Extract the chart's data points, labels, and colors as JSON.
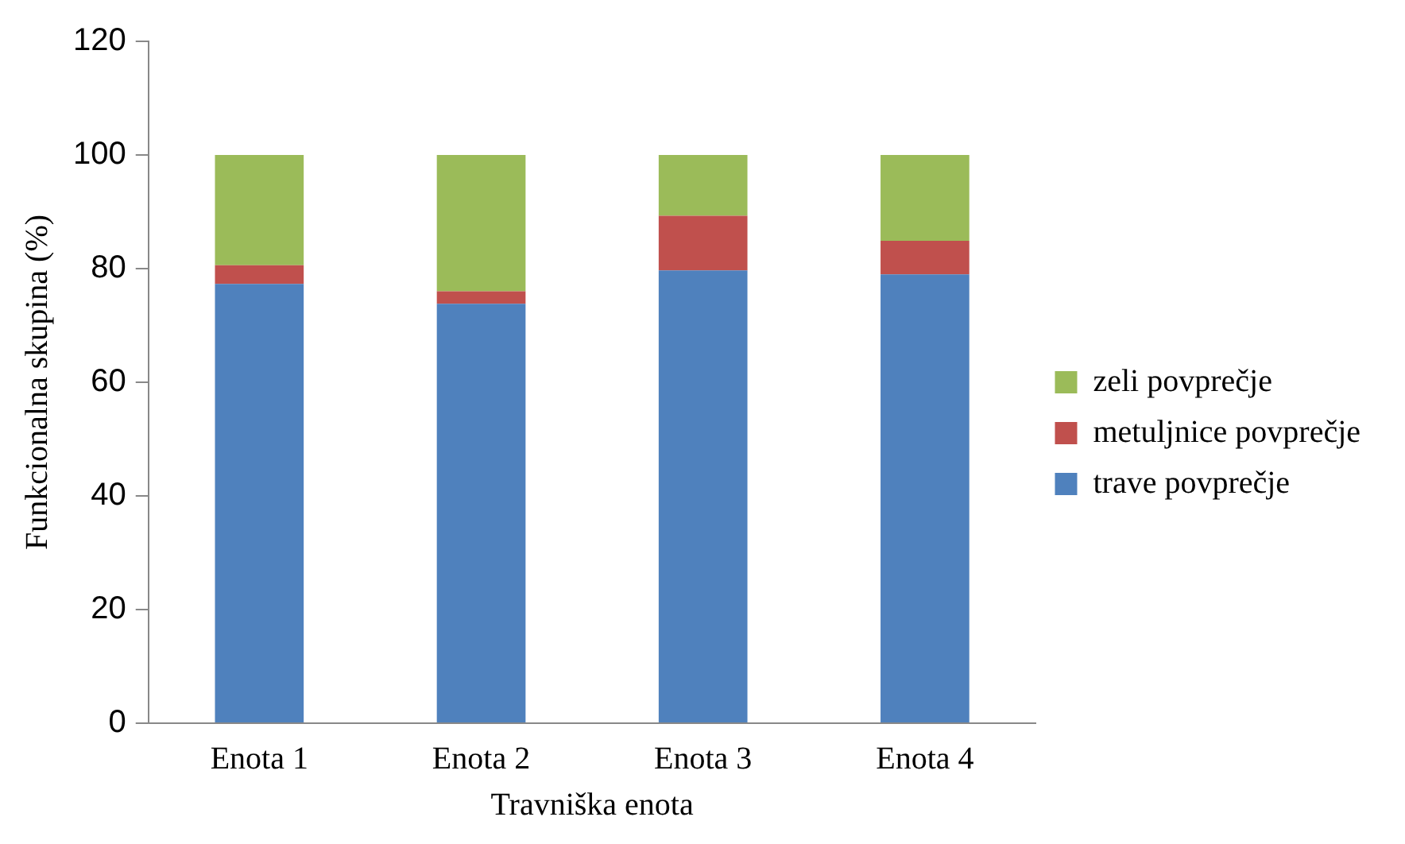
{
  "chart_data": {
    "type": "bar",
    "stacked": true,
    "xlabel": "Travniška enota",
    "ylabel": "Funkcionalna skupina (%)",
    "categories": [
      "Enota 1",
      "Enota 2",
      "Enota 3",
      "Enota 4"
    ],
    "series": [
      {
        "name": "trave povprečje",
        "color": "#4f81bd",
        "values": [
          77.3,
          73.8,
          79.7,
          79.0
        ]
      },
      {
        "name": "metuljnice povprečje",
        "color": "#c0504d",
        "values": [
          3.3,
          2.2,
          9.6,
          5.9
        ]
      },
      {
        "name": "zeli povprečje",
        "color": "#9bbb59",
        "values": [
          19.4,
          24.0,
          10.7,
          15.1
        ]
      }
    ],
    "ylim": [
      0,
      120
    ],
    "yticks": [
      0,
      20,
      40,
      60,
      80,
      100,
      120
    ],
    "grid": false,
    "legend": "right"
  }
}
